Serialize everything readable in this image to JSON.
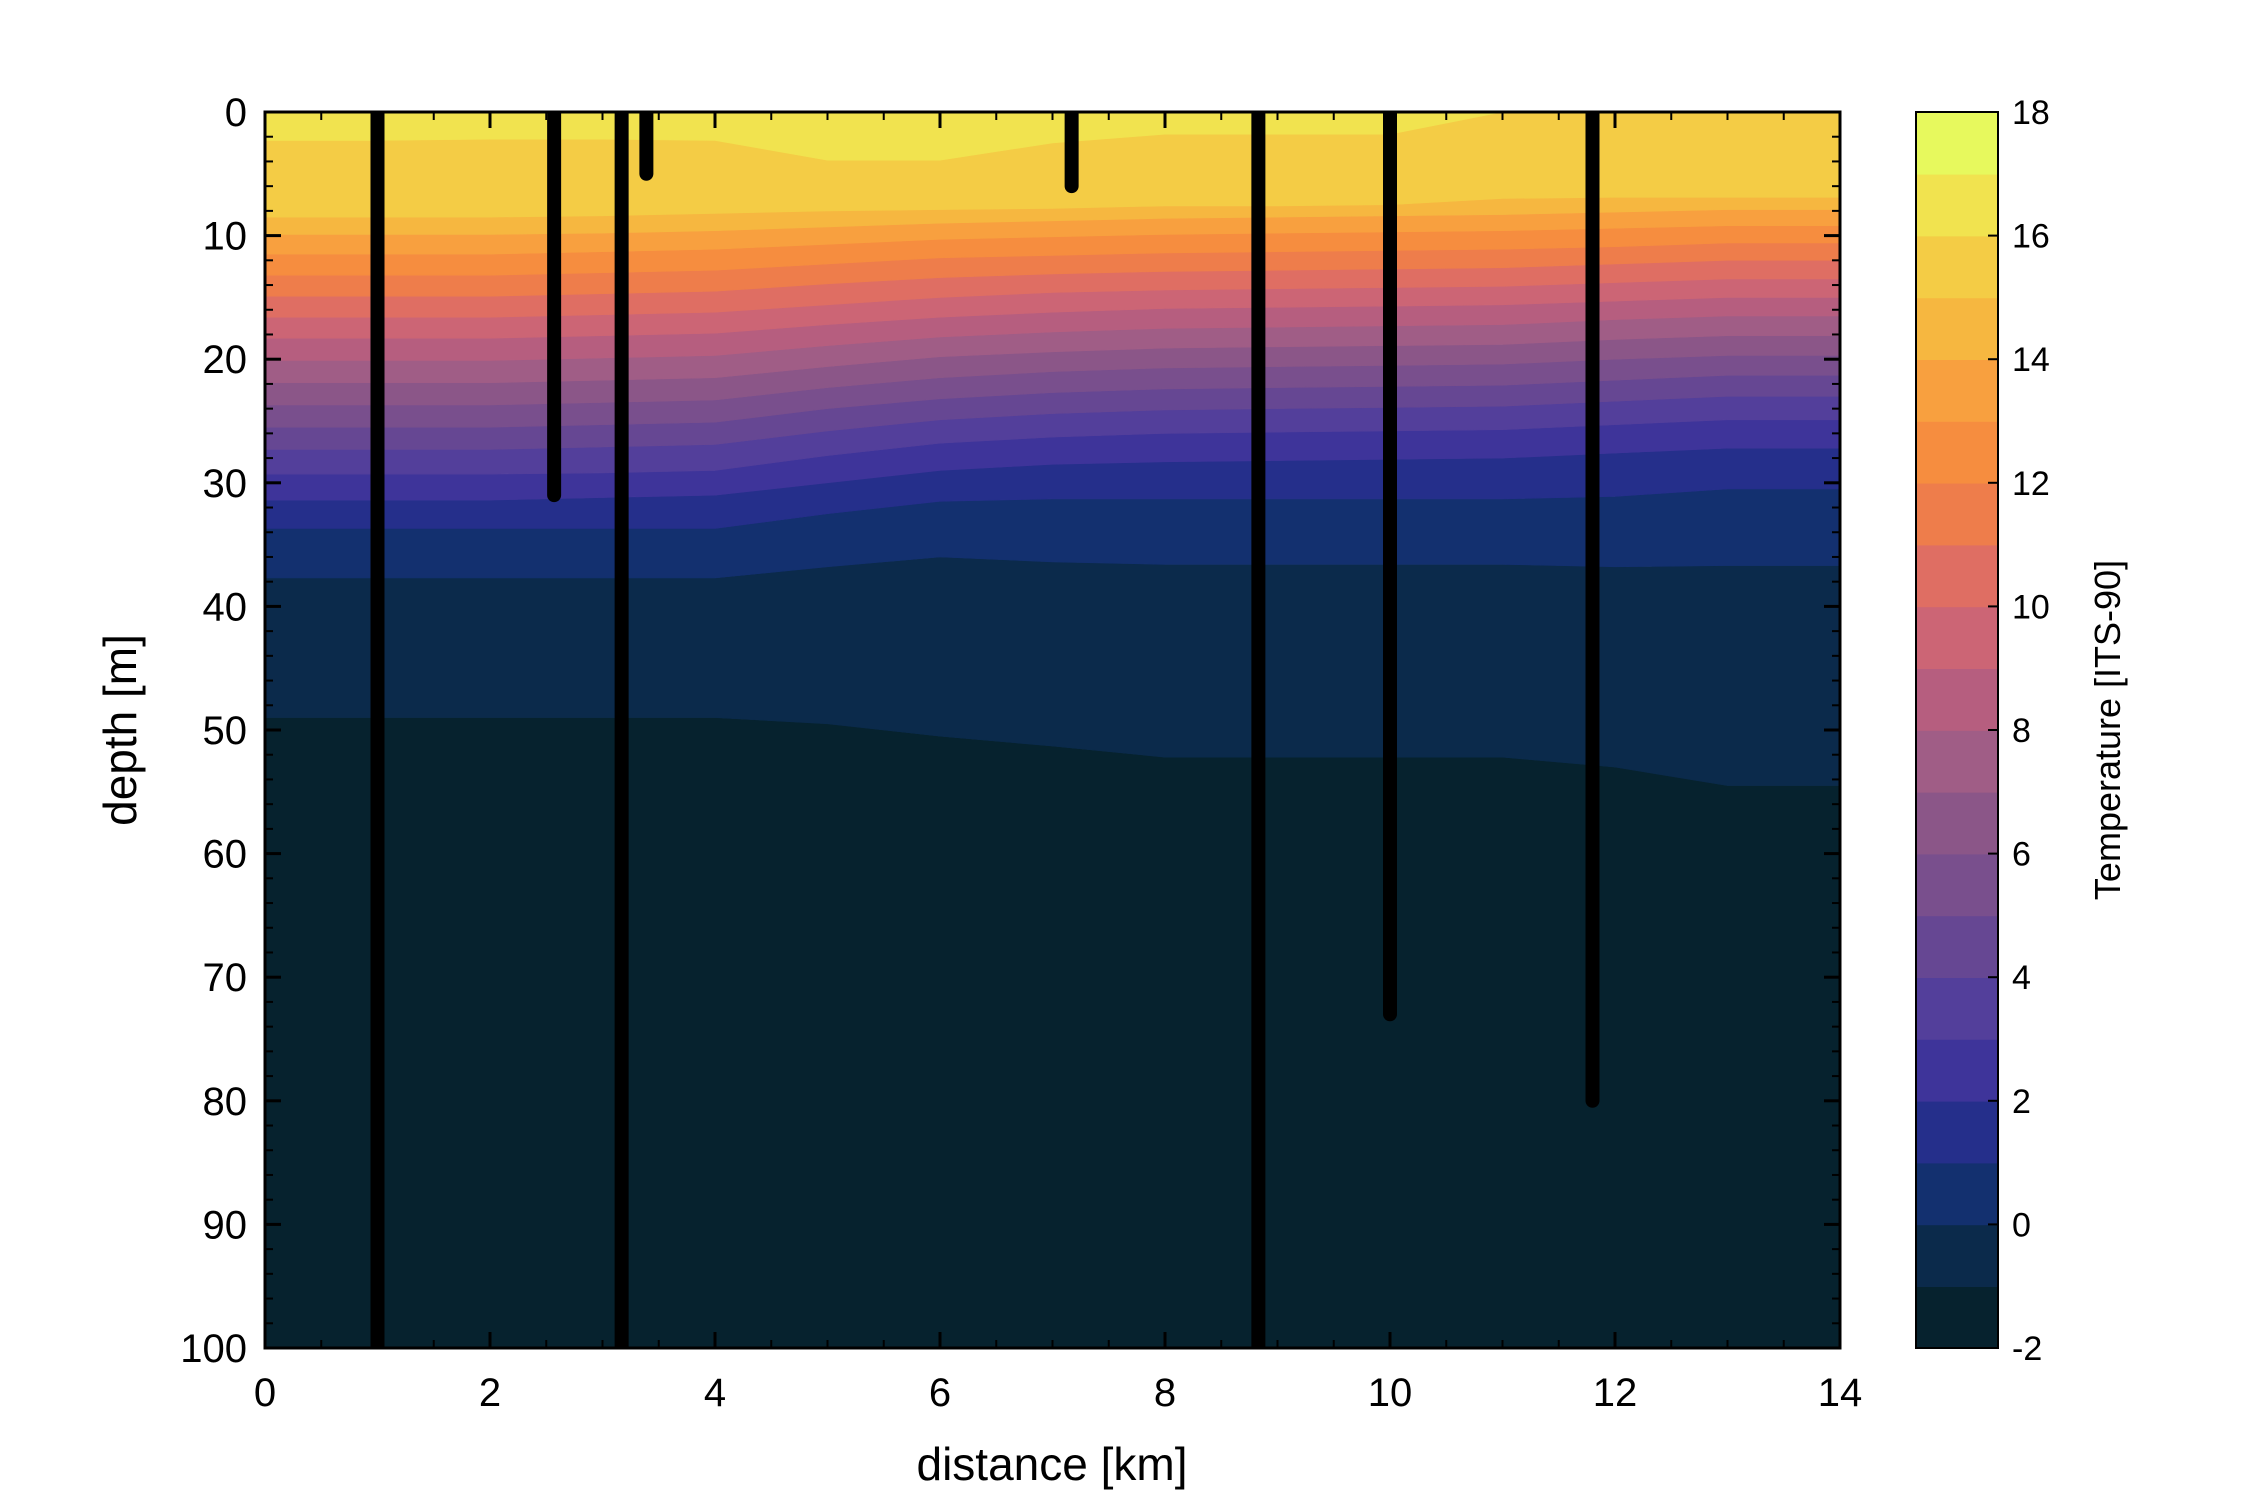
{
  "chart_data": {
    "type": "contour",
    "xlabel": "distance [km]",
    "ylabel": "depth [m]",
    "xlim": [
      0,
      14
    ],
    "ylim": [
      0,
      100
    ],
    "y_inverted": true,
    "x_ticks": [
      "0",
      "2",
      "4",
      "6",
      "8",
      "10",
      "12",
      "14"
    ],
    "y_ticks": [
      "0",
      "10",
      "20",
      "30",
      "40",
      "50",
      "60",
      "70",
      "80",
      "90",
      "100"
    ],
    "colorbar": {
      "label": "Temperature [ITS-90]",
      "range": [
        -2,
        18
      ],
      "ticks": [
        "-2",
        "0",
        "2",
        "4",
        "6",
        "8",
        "10",
        "12",
        "14",
        "16",
        "18"
      ],
      "level_step": 1,
      "colors": [
        "#06222e",
        "#0b2a4b",
        "#13306f",
        "#252f8b",
        "#3e349a",
        "#533f9b",
        "#664793",
        "#794f8d",
        "#8b5688",
        "#a05d86",
        "#b65e7f",
        "#cc6575",
        "#df6e63",
        "#ee7d4b",
        "#f68d3f",
        "#f8a03f",
        "#f6b740",
        "#f4cc45",
        "#f1e34f",
        "#e7f95d"
      ]
    },
    "contour_x": [
      0,
      1,
      2,
      3,
      4,
      5,
      6,
      7,
      8,
      9,
      10,
      11,
      12,
      13,
      14
    ],
    "isotherms": [
      {
        "temperature": -1,
        "depth": [
          49,
          49,
          49,
          49,
          49,
          49.5,
          50.5,
          51.3,
          52.2,
          52.2,
          52.2,
          52.2,
          53,
          54.5,
          54.5
        ]
      },
      {
        "temperature": 0,
        "depth": [
          37.7,
          37.7,
          37.7,
          37.7,
          37.7,
          36.8,
          36,
          36.4,
          36.6,
          36.6,
          36.6,
          36.6,
          36.8,
          36.7,
          36.7
        ]
      },
      {
        "temperature": 1,
        "depth": [
          33.7,
          33.7,
          33.7,
          33.7,
          33.7,
          32.5,
          31.5,
          31.3,
          31.3,
          31.3,
          31.3,
          31.3,
          31.1,
          30.5,
          30.5
        ]
      },
      {
        "temperature": 2,
        "depth": [
          31.4,
          31.4,
          31.4,
          31.2,
          31,
          30,
          29,
          28.5,
          28.3,
          28.2,
          28.1,
          28,
          27.6,
          27.2,
          27.2
        ]
      },
      {
        "temperature": 3,
        "depth": [
          29.3,
          29.3,
          29.3,
          29.2,
          29,
          27.8,
          26.8,
          26.3,
          26,
          25.9,
          25.8,
          25.7,
          25.3,
          24.9,
          24.9
        ]
      },
      {
        "temperature": 4,
        "depth": [
          27.3,
          27.3,
          27.3,
          27.1,
          26.9,
          25.8,
          24.9,
          24.4,
          24.1,
          24,
          23.9,
          23.8,
          23.4,
          23,
          23
        ]
      },
      {
        "temperature": 5,
        "depth": [
          25.5,
          25.5,
          25.5,
          25.3,
          25.1,
          24,
          23.2,
          22.7,
          22.4,
          22.3,
          22.2,
          22.1,
          21.7,
          21.3,
          21.3
        ]
      },
      {
        "temperature": 6,
        "depth": [
          23.7,
          23.7,
          23.7,
          23.5,
          23.3,
          22.3,
          21.5,
          21,
          20.7,
          20.6,
          20.5,
          20.4,
          20,
          19.7,
          19.7
        ]
      },
      {
        "temperature": 7,
        "depth": [
          21.9,
          21.9,
          21.9,
          21.7,
          21.5,
          20.6,
          19.8,
          19.4,
          19.1,
          19,
          18.9,
          18.8,
          18.4,
          18.1,
          18.1
        ]
      },
      {
        "temperature": 8,
        "depth": [
          20.1,
          20.1,
          20.1,
          19.9,
          19.7,
          18.9,
          18.2,
          17.8,
          17.5,
          17.4,
          17.3,
          17.2,
          16.8,
          16.5,
          16.5
        ]
      },
      {
        "temperature": 9,
        "depth": [
          18.3,
          18.3,
          18.3,
          18.1,
          17.9,
          17.2,
          16.6,
          16.2,
          15.9,
          15.8,
          15.7,
          15.6,
          15.3,
          15,
          15
        ]
      },
      {
        "temperature": 10,
        "depth": [
          16.6,
          16.6,
          16.6,
          16.4,
          16.2,
          15.6,
          15,
          14.6,
          14.4,
          14.3,
          14.2,
          14.1,
          13.8,
          13.5,
          13.5
        ]
      },
      {
        "temperature": 11,
        "depth": [
          14.9,
          14.9,
          14.9,
          14.7,
          14.5,
          13.9,
          13.4,
          13.1,
          12.9,
          12.8,
          12.7,
          12.6,
          12.3,
          12,
          12
        ]
      },
      {
        "temperature": 12,
        "depth": [
          13.2,
          13.2,
          13.2,
          13,
          12.8,
          12.3,
          11.8,
          11.6,
          11.4,
          11.3,
          11.2,
          11.1,
          10.9,
          10.6,
          10.6
        ]
      },
      {
        "temperature": 13,
        "depth": [
          11.5,
          11.5,
          11.5,
          11.3,
          11.1,
          10.7,
          10.3,
          10.1,
          9.9,
          9.8,
          9.7,
          9.6,
          9.4,
          9.2,
          9.2
        ]
      },
      {
        "temperature": 14,
        "depth": [
          9.9,
          9.9,
          9.9,
          9.8,
          9.6,
          9.3,
          9,
          8.8,
          8.6,
          8.5,
          8.4,
          8.3,
          8.1,
          7.9,
          7.9
        ]
      },
      {
        "temperature": 15,
        "depth": [
          8.5,
          8.5,
          8.5,
          8.4,
          8.2,
          8,
          7.9,
          7.8,
          7.6,
          7.6,
          7.5,
          7,
          6.9,
          6.9,
          6.9
        ]
      },
      {
        "temperature": 16,
        "depth": [
          2.3,
          2.3,
          2.2,
          2.2,
          2.3,
          3.9,
          3.9,
          2.5,
          1.8,
          1.8,
          1.8,
          0,
          0,
          0,
          0
        ]
      }
    ],
    "casts": [
      {
        "distance": 1.0,
        "max_depth": 100
      },
      {
        "distance": 2.57,
        "max_depth": 31
      },
      {
        "distance": 3.17,
        "max_depth": 100
      },
      {
        "distance": 3.39,
        "max_depth": 5
      },
      {
        "distance": 7.17,
        "max_depth": 6
      },
      {
        "distance": 8.83,
        "max_depth": 100
      },
      {
        "distance": 10.0,
        "max_depth": 73
      },
      {
        "distance": 11.8,
        "max_depth": 80
      }
    ]
  }
}
